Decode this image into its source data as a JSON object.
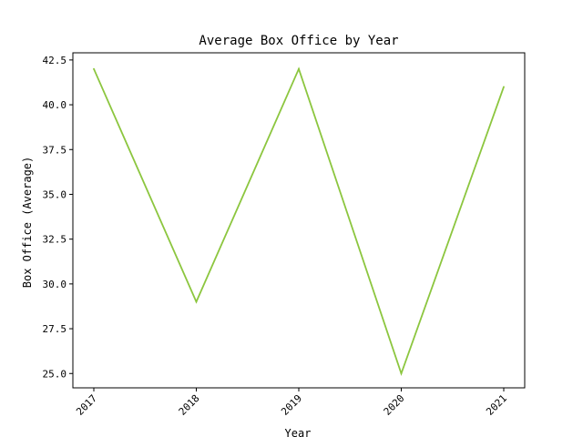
{
  "chart_data": {
    "type": "line",
    "title": "Average Box Office by Year",
    "xlabel": "Year",
    "ylabel": "Box Office (Average)",
    "categories": [
      "2017",
      "2018",
      "2019",
      "2020",
      "2021"
    ],
    "series": [
      {
        "values": [
          42.0,
          29.0,
          42.0,
          25.0,
          41.0
        ],
        "color": "#8cc63f"
      }
    ],
    "ylim": [
      24.2,
      42.9
    ],
    "yticks": [
      25.0,
      27.5,
      30.0,
      32.5,
      35.0,
      37.5,
      40.0,
      42.5
    ],
    "ytick_labels": [
      "25.0",
      "27.5",
      "30.0",
      "32.5",
      "35.0",
      "37.5",
      "40.0",
      "42.5"
    ],
    "grid": false,
    "legend": false
  }
}
